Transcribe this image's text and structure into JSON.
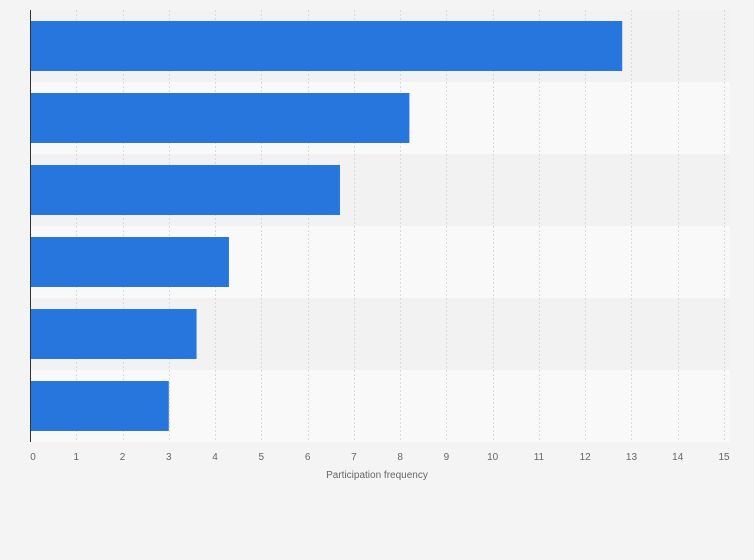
{
  "chart_data": {
    "type": "bar",
    "orientation": "horizontal",
    "categories": [
      "",
      "",
      "",
      "",
      "",
      ""
    ],
    "values": [
      12.8,
      8.2,
      6.7,
      4.3,
      3.6,
      3.0
    ],
    "xlabel": "Participation frequency",
    "ylabel": "",
    "xlim": [
      0,
      15
    ],
    "x_ticks": [
      "0",
      "1",
      "2",
      "3",
      "4",
      "5",
      "6",
      "7",
      "8",
      "9",
      "10",
      "11",
      "12",
      "13",
      "14",
      "15"
    ],
    "grid": true,
    "legend": "none",
    "colors": {
      "bar": "#2776dd",
      "band_dark": "#f2f2f2",
      "band_light": "#f9f9f9",
      "background": "#f4f4f4",
      "grid": "#dadada",
      "axis": "#333333",
      "text": "#666666"
    }
  }
}
